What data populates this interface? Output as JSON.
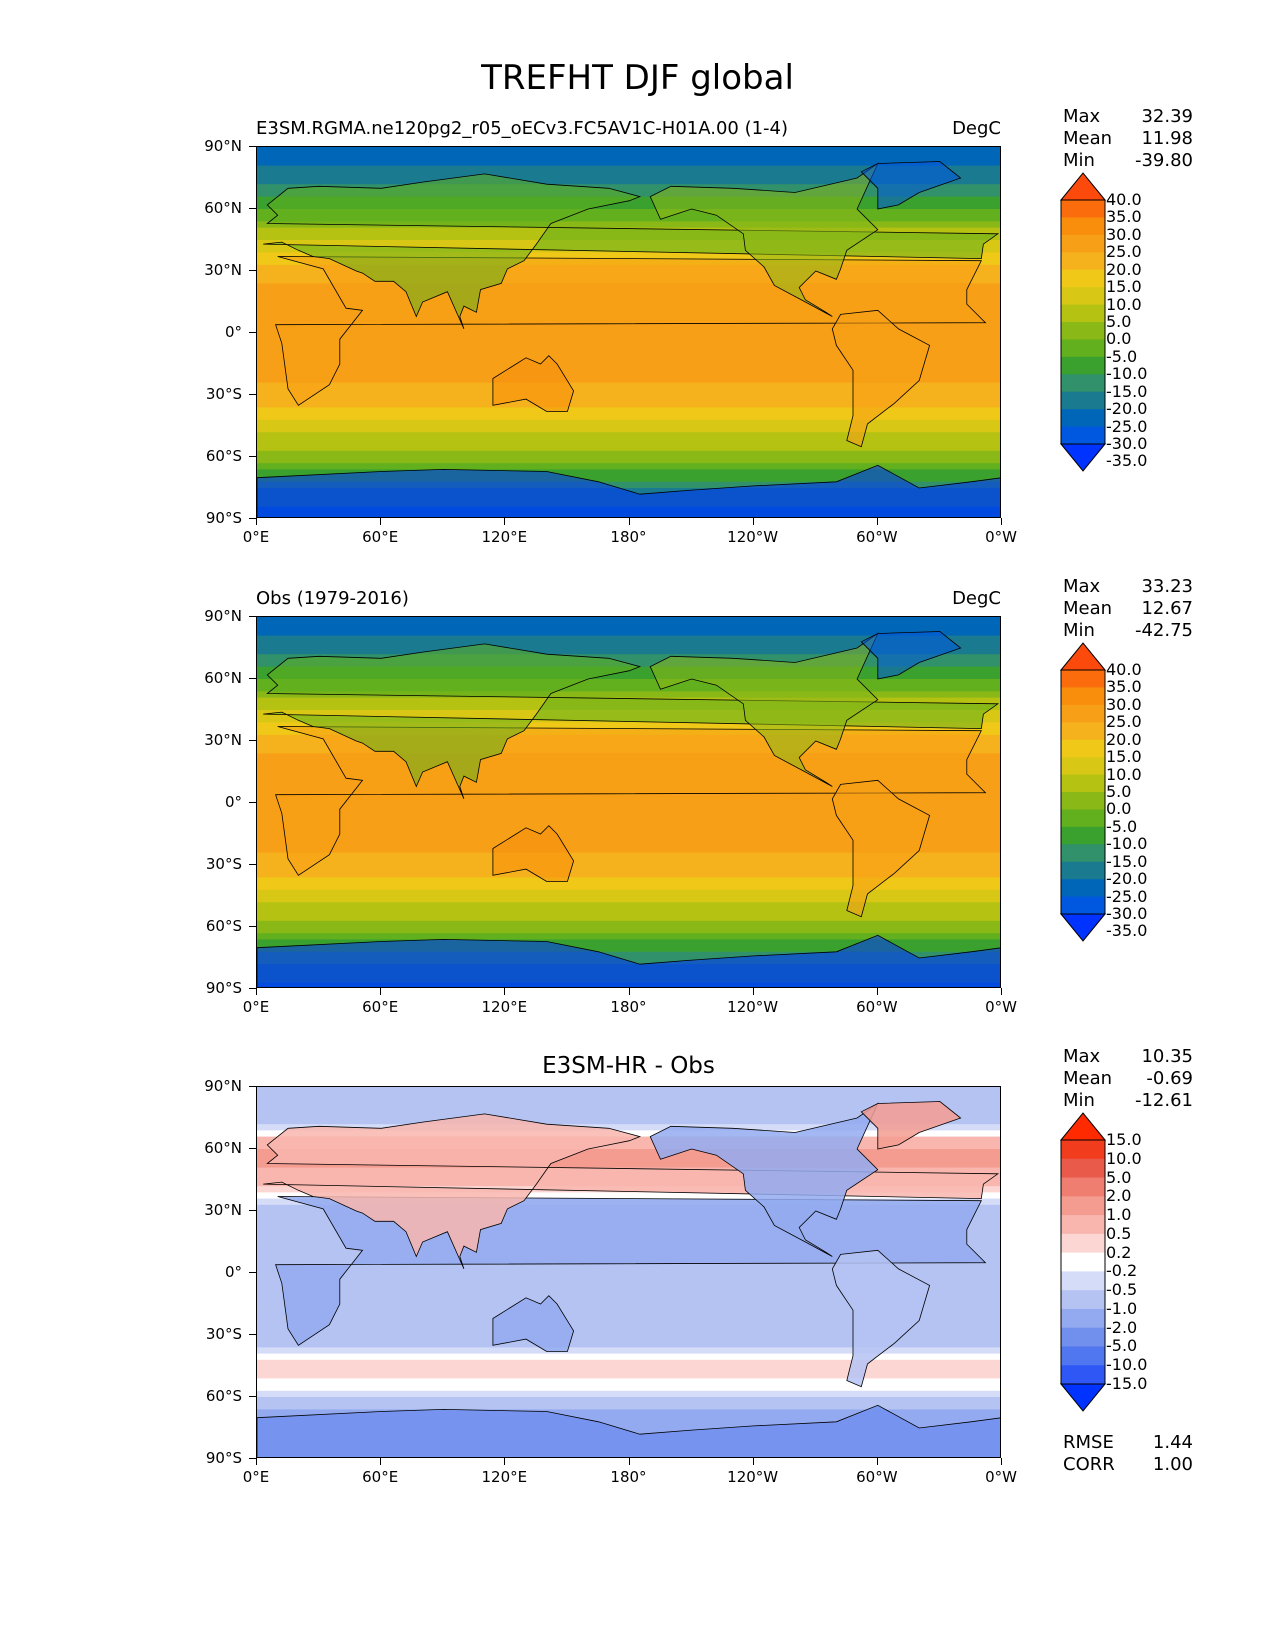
{
  "page": {
    "title": "TREFHT DJF global"
  },
  "axes": {
    "yticks": [
      "90°N",
      "60°N",
      "30°N",
      "0°",
      "30°S",
      "60°S",
      "90°S"
    ],
    "xticks": [
      "0°E",
      "60°E",
      "120°E",
      "180°",
      "120°W",
      "60°W",
      "0°W"
    ]
  },
  "panels": [
    {
      "label": "E3SM.RGMA.ne120pg2_r05_oECv3.FC5AV1C-H01A.00 (1-4)",
      "units": "DegC",
      "stats": {
        "max_label": "Max",
        "max": "32.39",
        "mean_label": "Mean",
        "mean": "11.98",
        "min_label": "Min",
        "min": "-39.80"
      },
      "colorbar_labels": [
        "40.0",
        "35.0",
        "30.0",
        "25.0",
        "20.0",
        "15.0",
        "10.0",
        "5.0",
        "0.0",
        "-5.0",
        "-10.0",
        "-15.0",
        "-20.0",
        "-25.0",
        "-30.0",
        "-35.0"
      ]
    },
    {
      "label": "Obs (1979-2016)",
      "units": "DegC",
      "stats": {
        "max_label": "Max",
        "max": "33.23",
        "mean_label": "Mean",
        "mean": "12.67",
        "min_label": "Min",
        "min": "-42.75"
      },
      "colorbar_labels": [
        "40.0",
        "35.0",
        "30.0",
        "25.0",
        "20.0",
        "15.0",
        "10.0",
        "5.0",
        "0.0",
        "-5.0",
        "-10.0",
        "-15.0",
        "-20.0",
        "-25.0",
        "-30.0",
        "-35.0"
      ]
    },
    {
      "title": "E3SM-HR - Obs",
      "stats": {
        "max_label": "Max",
        "max": "10.35",
        "mean_label": "Mean",
        "mean": "-0.69",
        "min_label": "Min",
        "min": "-12.61"
      },
      "colorbar_labels": [
        "15.0",
        "10.0",
        "5.0",
        "2.0",
        "1.0",
        "0.5",
        "0.2",
        "-0.2",
        "-0.5",
        "-1.0",
        "-2.0",
        "-5.0",
        "-10.0",
        "-15.0"
      ],
      "metrics": {
        "rmse_label": "RMSE",
        "rmse": "1.44",
        "corr_label": "CORR",
        "corr": "1.00"
      }
    }
  ],
  "chart_data": [
    {
      "type": "heatmap",
      "title": "E3SM.RGMA.ne120pg2_r05_oECv3.FC5AV1C-H01A.00 (1-4)",
      "units": "DegC",
      "variable": "TREFHT",
      "season": "DJF",
      "xlim": [
        0,
        360
      ],
      "ylim": [
        -90,
        90
      ],
      "latitudes": [
        -90,
        -75,
        -60,
        -45,
        -30,
        -15,
        0,
        15,
        30,
        45,
        60,
        75,
        90
      ],
      "zonal_mean_degC": [
        -30,
        -20,
        -3,
        8,
        18,
        24,
        25,
        23,
        17,
        5,
        -10,
        -22,
        -30
      ],
      "levels": [
        -35,
        -30,
        -25,
        -20,
        -15,
        -10,
        -5,
        0,
        5,
        10,
        15,
        20,
        25,
        30,
        35,
        40
      ],
      "colors": [
        "#0033ff",
        "#0057e0",
        "#0067b8",
        "#1a7a90",
        "#30916a",
        "#3aa02e",
        "#63b01e",
        "#8ab817",
        "#b5c212",
        "#d8c815",
        "#f0c818",
        "#f5b21c",
        "#f79f16",
        "#f88e0c",
        "#fb6d0c",
        "#fb4a0c"
      ]
    },
    {
      "type": "heatmap",
      "title": "Obs (1979-2016)",
      "units": "DegC",
      "variable": "TREFHT",
      "season": "DJF",
      "xlim": [
        0,
        360
      ],
      "ylim": [
        -90,
        90
      ],
      "latitudes": [
        -90,
        -75,
        -60,
        -45,
        -30,
        -15,
        0,
        15,
        30,
        45,
        60,
        75,
        90
      ],
      "zonal_mean_degC": [
        -28,
        -18,
        -3,
        8,
        18,
        24,
        25,
        23,
        17,
        5,
        -10,
        -22,
        -30
      ],
      "levels": [
        -35,
        -30,
        -25,
        -20,
        -15,
        -10,
        -5,
        0,
        5,
        10,
        15,
        20,
        25,
        30,
        35,
        40
      ],
      "colors": [
        "#0033ff",
        "#0057e0",
        "#0067b8",
        "#1a7a90",
        "#30916a",
        "#3aa02e",
        "#63b01e",
        "#8ab817",
        "#b5c212",
        "#d8c815",
        "#f0c818",
        "#f5b21c",
        "#f79f16",
        "#f88e0c",
        "#fb6d0c",
        "#fb4a0c"
      ]
    },
    {
      "type": "heatmap",
      "title": "E3SM-HR - Obs",
      "units": "DegC",
      "xlim": [
        0,
        360
      ],
      "ylim": [
        -90,
        90
      ],
      "latitudes": [
        -90,
        -75,
        -60,
        -45,
        -30,
        -15,
        0,
        15,
        30,
        45,
        60,
        75,
        90
      ],
      "zonal_mean_diff": [
        -1.5,
        -2,
        -0.5,
        0.6,
        -1,
        -1,
        -0.8,
        -1,
        -1,
        0.8,
        1.2,
        -1,
        -1
      ],
      "levels": [
        -15,
        -10,
        -5,
        -2,
        -1,
        -0.5,
        -0.2,
        0.2,
        0.5,
        1,
        2,
        5,
        10,
        15
      ],
      "colors": [
        "#0033ff",
        "#2f57f5",
        "#5077f0",
        "#7190ee",
        "#93aaf0",
        "#b5c3f3",
        "#d5dcf8",
        "#ffffff",
        "#fcd6d3",
        "#f8b6ae",
        "#f49c90",
        "#ef7d70",
        "#ea5a4b",
        "#f23c1e",
        "#ff2a00"
      ]
    }
  ],
  "colors": {
    "ocean_equator": "#f88e0c",
    "ice_blue": "#0057e0",
    "diff_blue": "#7190ee",
    "diff_red": "#f49c90"
  }
}
